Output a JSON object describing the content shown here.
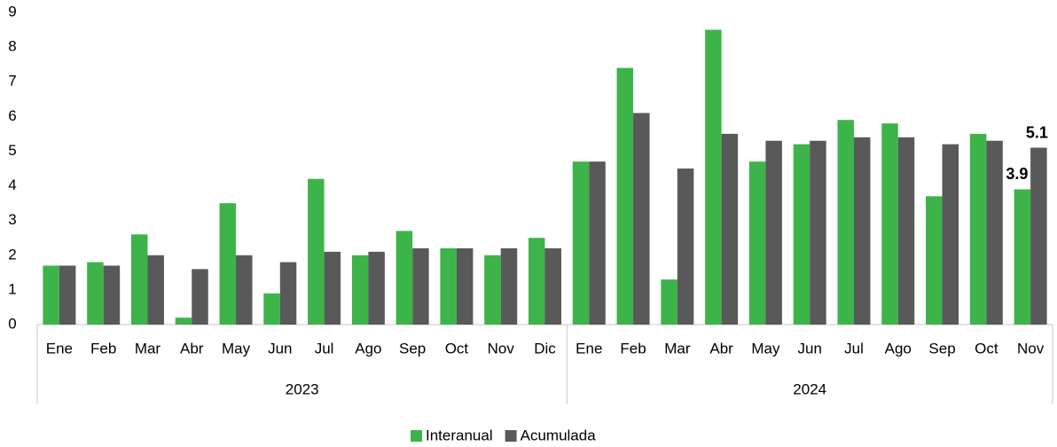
{
  "chart_data": {
    "type": "bar",
    "groups": [
      {
        "name": "2023",
        "categories": [
          "Ene",
          "Feb",
          "Mar",
          "Abr",
          "May",
          "Jun",
          "Jul",
          "Ago",
          "Sep",
          "Oct",
          "Nov",
          "Dic"
        ]
      },
      {
        "name": "2024",
        "categories": [
          "Ene",
          "Feb",
          "Mar",
          "Abr",
          "May",
          "Jun",
          "Jul",
          "Ago",
          "Sep",
          "Oct",
          "Nov"
        ]
      }
    ],
    "series": [
      {
        "name": "Interanual",
        "color": "#3cb44a",
        "values": [
          1.7,
          1.8,
          2.6,
          0.2,
          3.5,
          0.9,
          4.2,
          2.0,
          2.7,
          2.2,
          2.0,
          2.5,
          4.7,
          7.4,
          1.3,
          8.5,
          4.7,
          5.2,
          5.9,
          5.8,
          3.7,
          5.5,
          3.9
        ]
      },
      {
        "name": "Acumulada",
        "color": "#595959",
        "values": [
          1.7,
          1.7,
          2.0,
          1.6,
          2.0,
          1.8,
          2.1,
          2.1,
          2.2,
          2.2,
          2.2,
          2.2,
          4.7,
          6.1,
          4.5,
          5.5,
          5.3,
          5.3,
          5.4,
          5.4,
          5.2,
          5.3,
          5.1
        ]
      }
    ],
    "data_labels": "last",
    "ylim": [
      0,
      9
    ],
    "yticks": [
      0,
      1,
      2,
      3,
      4,
      5,
      6,
      7,
      8,
      9
    ],
    "grid": false,
    "legend": "bottom"
  }
}
